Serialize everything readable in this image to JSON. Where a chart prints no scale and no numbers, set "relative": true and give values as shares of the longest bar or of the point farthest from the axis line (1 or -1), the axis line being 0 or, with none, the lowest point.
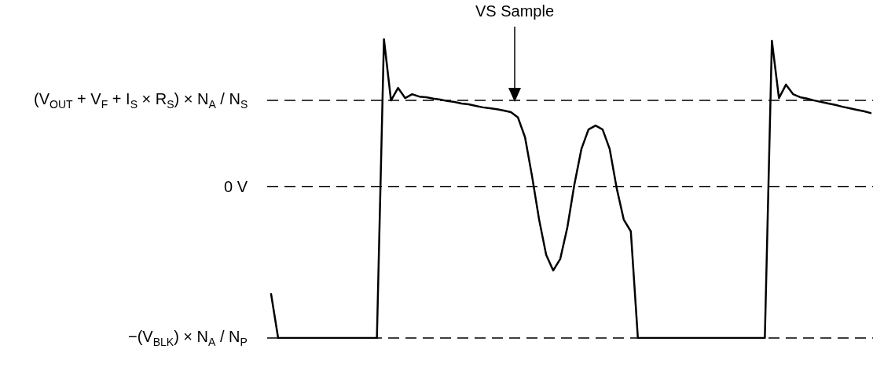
{
  "chart_data": {
    "type": "line",
    "relative": true,
    "color": "#000000",
    "line_style": "solid",
    "categories": [
      null,
      null,
      null,
      null,
      null,
      null,
      null,
      null,
      null,
      null,
      null,
      null,
      null,
      null,
      null,
      null,
      null,
      null,
      null,
      null,
      null,
      null,
      null,
      null,
      null,
      null,
      null,
      null,
      null,
      null,
      null,
      null,
      null,
      null,
      null,
      null,
      null,
      null,
      null,
      null,
      null,
      null,
      null,
      null,
      null,
      null,
      null,
      null,
      null,
      null,
      null,
      null,
      null,
      null,
      null,
      null,
      null,
      null,
      null,
      null,
      null,
      null,
      null,
      null,
      null,
      null,
      null,
      null,
      null,
      null,
      null,
      null,
      null,
      null,
      null,
      null,
      null,
      null,
      null,
      null,
      null,
      null,
      null,
      null,
      null,
      null
    ],
    "values": [
      0.147,
      0,
      0,
      0,
      0,
      0,
      0,
      0,
      0,
      0,
      0,
      0,
      0,
      0,
      0,
      0,
      1,
      0.795,
      0.837,
      0.803,
      0.816,
      0.808,
      0.806,
      0.801,
      0.798,
      0.793,
      0.79,
      0.785,
      0.782,
      0.777,
      0.772,
      0.769,
      0.766,
      0.761,
      0.756,
      0.738,
      0.672,
      0.541,
      0.396,
      0.278,
      0.226,
      0.265,
      0.37,
      0.514,
      0.633,
      0.698,
      0.711,
      0.698,
      0.633,
      0.501,
      0.396,
      0.357,
      0,
      0,
      0,
      0,
      0,
      0,
      0,
      0,
      0,
      0,
      0,
      0,
      0,
      0,
      0,
      0,
      0,
      0,
      0,
      0.995,
      0.803,
      0.848,
      0.816,
      0.806,
      0.801,
      0.795,
      0.79,
      0.785,
      0.78,
      0.774,
      0.769,
      0.764,
      0.759,
      0.753
    ],
    "ref_lines": [
      {
        "axis": "y",
        "value": 0.795,
        "label": "(V$_{OUT}$ + V$_{F}$ + I$_{S}$ × R$_{S}$) × N$_{A}$ / N$_{S}$",
        "line_style": "dashed",
        "color": "#000000"
      },
      {
        "axis": "y",
        "value": 0.507,
        "label": "0 V",
        "line_style": "dashed",
        "color": "#000000"
      },
      {
        "axis": "y",
        "value": 0,
        "label": "−(V$_{BLK}$) × N$_{A}$ / N$_{P}$",
        "line_style": "dashed",
        "color": "#000000"
      }
    ],
    "annotations": [
      "VS Sample"
    ]
  }
}
